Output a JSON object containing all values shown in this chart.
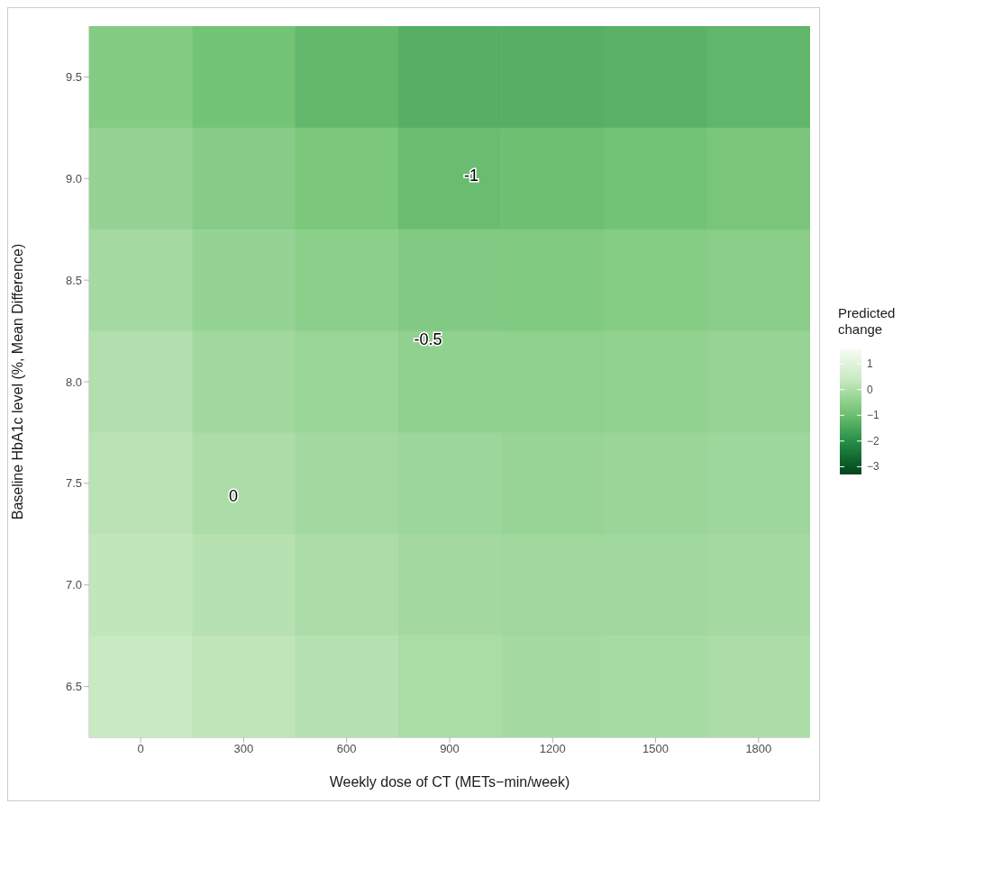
{
  "chart_data": {
    "type": "heatmap",
    "xlabel": "Weekly dose of CT (METs−min/week)",
    "ylabel": "Baseline HbA1c level (%, Mean Difference)",
    "clabel": "Predicted change",
    "categories": [
      "0",
      "300",
      "600",
      "900",
      "1200",
      "1500",
      "1800"
    ],
    "y_categories": [
      "9.5",
      "9.0",
      "8.5",
      "8.0",
      "7.5",
      "7.0",
      "6.5"
    ],
    "cells": [
      [
        -0.61,
        -0.85,
        -1.1,
        -1.3,
        -1.3,
        -1.23,
        -1.16
      ],
      [
        -0.37,
        -0.58,
        -0.75,
        -1.0,
        -0.96,
        -0.87,
        -0.77
      ],
      [
        -0.14,
        -0.36,
        -0.5,
        -0.64,
        -0.66,
        -0.6,
        -0.54
      ],
      [
        0.06,
        -0.18,
        -0.3,
        -0.42,
        -0.45,
        -0.4,
        -0.35
      ],
      [
        0.19,
        -0.02,
        -0.15,
        -0.26,
        -0.32,
        -0.28,
        -0.23
      ],
      [
        0.29,
        0.13,
        -0.02,
        -0.15,
        -0.22,
        -0.18,
        -0.14
      ],
      [
        0.4,
        0.25,
        0.11,
        -0.06,
        -0.13,
        -0.09,
        -0.03
      ]
    ],
    "clim": [
      -3.3,
      1.6
    ],
    "cticks": [
      1,
      0,
      {
        "value": -1,
        "label": "−1"
      },
      {
        "value": -2,
        "label": "−2"
      },
      {
        "value": -3,
        "label": "−3"
      }
    ],
    "annotations": [
      "-1",
      "-0.5",
      "0"
    ]
  }
}
